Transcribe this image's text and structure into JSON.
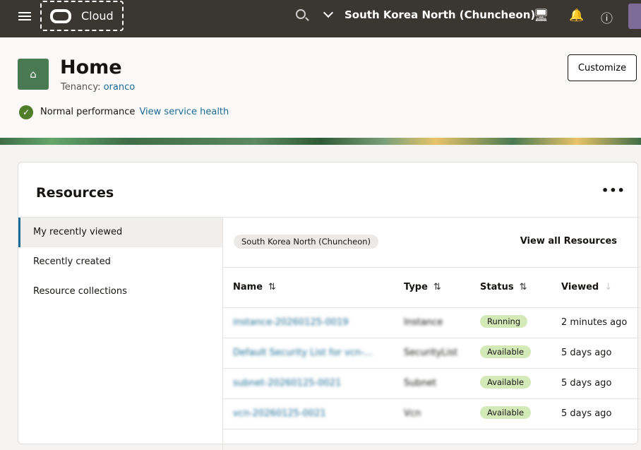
{
  "topbar": {
    "brand": "Cloud",
    "region": "South Korea North (Chuncheon)",
    "icons": [
      "menu-icon",
      "search-icon",
      "chevron-down-icon",
      "cloud-shell-icon",
      "bell-icon",
      "help-icon",
      "avatar"
    ]
  },
  "header": {
    "title": "Home",
    "tenancy_label": "Tenancy:",
    "tenancy": "oranco",
    "status": "Normal performance",
    "health_link": "View service health",
    "customize": "Customize"
  },
  "resources": {
    "title": "Resources",
    "more": "•••",
    "nav": [
      {
        "label": "My recently viewed",
        "active": true
      },
      {
        "label": "Recently created"
      },
      {
        "label": "Resource collections"
      }
    ],
    "region_chip": "South Korea North (Chuncheon)",
    "view_all": "View all Resources",
    "columns": [
      "Name",
      "Type",
      "Status",
      "Viewed"
    ],
    "rows": [
      {
        "name": "instance-20260125-0019",
        "type": "Instance",
        "status": "Running",
        "viewed": "2 minutes ago"
      },
      {
        "name": "Default Security List for vcn-...",
        "type": "SecurityList",
        "status": "Available",
        "viewed": "5 days ago"
      },
      {
        "name": "subnet-20260125-0021",
        "type": "Subnet",
        "status": "Available",
        "viewed": "5 days ago"
      },
      {
        "name": "vcn-20260125-0021",
        "type": "Vcn",
        "status": "Available",
        "viewed": "5 days ago"
      }
    ]
  },
  "colors": {
    "topbar": "#3a3631",
    "link": "#1b6b93",
    "badge": "#d4e9b8",
    "ok": "#4f7d2a"
  }
}
